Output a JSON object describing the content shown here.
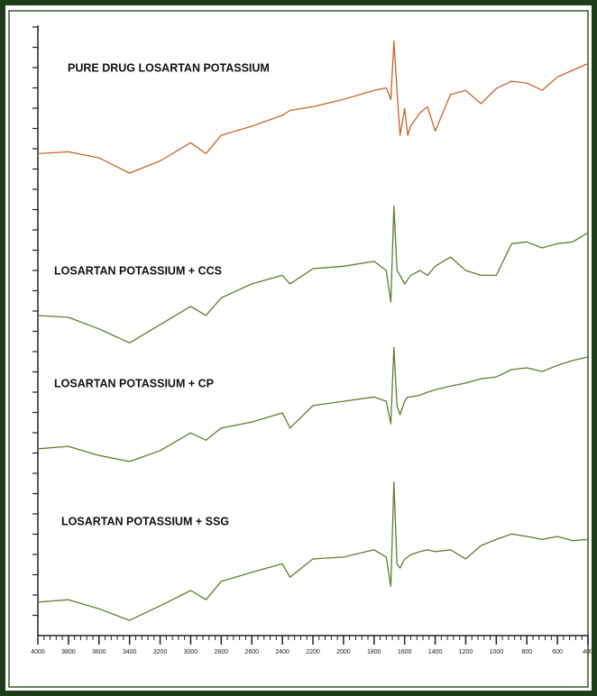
{
  "chart_data": {
    "type": "line",
    "x": [
      4000,
      3800,
      3600,
      3400,
      3200,
      3000,
      2900,
      2800,
      2600,
      2400,
      2350,
      2200,
      2000,
      1800,
      1720,
      1690,
      1670,
      1650,
      1630,
      1600,
      1580,
      1560,
      1500,
      1450,
      1400,
      1300,
      1200,
      1100,
      1000,
      900,
      800,
      700,
      600,
      500,
      400
    ],
    "xlim": [
      4000,
      400
    ],
    "xticks": [
      4000,
      3800,
      3600,
      3400,
      3200,
      3000,
      2800,
      2600,
      2400,
      2200,
      2000,
      1800,
      1600,
      1400,
      1200,
      1000,
      800,
      600,
      400
    ],
    "ylim": [
      0,
      100
    ],
    "series": [
      {
        "name": "PURE DRUG LOSARTAN POTASSIUM",
        "color": "#c8642a",
        "values": [
          79.2,
          79.5,
          78.5,
          76.0,
          78.0,
          81.0,
          79.2,
          82.2,
          83.7,
          85.5,
          86.3,
          86.9,
          88.1,
          89.6,
          90.0,
          88.1,
          97.7,
          89.6,
          82.2,
          86.6,
          82.2,
          83.7,
          85.9,
          86.9,
          82.9,
          88.9,
          89.6,
          87.4,
          89.9,
          91.1,
          90.8,
          89.6,
          91.8,
          92.9,
          94.0
        ]
      },
      {
        "name": "LOSARTAN POTASSIUM + CCS",
        "color": "#5e7d2f",
        "values": [
          52.6,
          52.3,
          50.4,
          48.1,
          51.1,
          54.1,
          52.6,
          55.5,
          57.8,
          59.2,
          57.8,
          60.3,
          60.7,
          61.5,
          60.0,
          54.8,
          70.6,
          60.0,
          59.2,
          57.8,
          58.5,
          59.2,
          60.0,
          59.2,
          60.7,
          62.2,
          60.0,
          59.2,
          59.2,
          64.4,
          64.7,
          63.7,
          64.4,
          64.7,
          66.2
        ]
      },
      {
        "name": "LOSARTAN POTASSIUM + CP",
        "color": "#5e7d2f",
        "values": [
          30.7,
          31.1,
          29.6,
          28.6,
          30.4,
          33.3,
          32.1,
          34.1,
          35.1,
          36.6,
          34.1,
          37.8,
          38.5,
          39.2,
          38.5,
          34.8,
          47.4,
          37.8,
          36.3,
          38.5,
          39.2,
          39.2,
          39.5,
          40.0,
          40.4,
          41.0,
          41.5,
          42.2,
          42.5,
          43.7,
          44.0,
          43.4,
          44.4,
          45.2,
          45.8
        ]
      },
      {
        "name": "LOSARTAN POTASSIUM + SSG",
        "color": "#5e7d2f",
        "values": [
          5.5,
          5.9,
          4.4,
          2.5,
          4.9,
          7.4,
          5.9,
          8.9,
          10.4,
          11.8,
          9.6,
          12.6,
          12.9,
          14.1,
          12.9,
          8.1,
          25.2,
          11.8,
          11.1,
          12.6,
          12.9,
          13.3,
          13.8,
          14.1,
          13.8,
          14.1,
          12.6,
          14.8,
          15.8,
          16.7,
          16.3,
          15.8,
          16.3,
          15.6,
          15.8
        ]
      }
    ]
  }
}
